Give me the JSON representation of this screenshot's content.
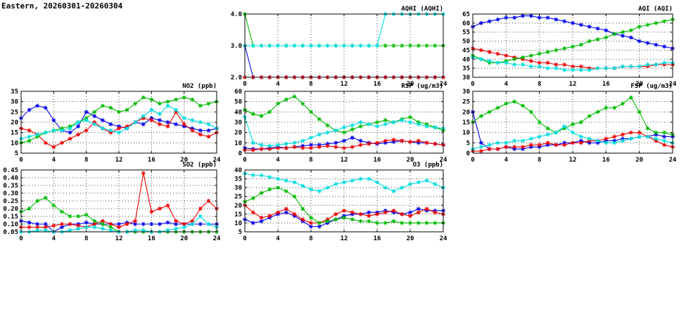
{
  "page": {
    "title": "Eastern, 20260301-20260304"
  },
  "colors": {
    "blue": "#0000ee",
    "red": "#ee0000",
    "green": "#00bb00",
    "cyan": "#00dddd"
  },
  "chart_data": [
    {
      "id": "aqhi",
      "type": "line",
      "title": "AQHI (AQHI)",
      "xlim": [
        0,
        24
      ],
      "xticks": [
        0,
        4,
        8,
        12,
        16,
        20,
        24
      ],
      "ylim": [
        2.0,
        4.0
      ],
      "yticks": [
        2.0,
        3.0,
        4.0
      ],
      "ytick_labels": [
        "2.0",
        "3.0",
        "4.0"
      ],
      "x": [
        0,
        1,
        2,
        3,
        4,
        5,
        6,
        7,
        8,
        9,
        10,
        11,
        12,
        13,
        14,
        15,
        16,
        17,
        18,
        19,
        20,
        21,
        22,
        23,
        24
      ],
      "series": [
        {
          "name": "blue",
          "values": [
            3,
            2,
            2,
            2,
            2,
            2,
            2,
            2,
            2,
            2,
            2,
            2,
            2,
            2,
            2,
            2,
            2,
            2,
            2,
            2,
            2,
            2,
            2,
            2,
            2
          ]
        },
        {
          "name": "red",
          "values": [
            2,
            2,
            2,
            2,
            2,
            2,
            2,
            2,
            2,
            2,
            2,
            2,
            2,
            2,
            2,
            2,
            2,
            2,
            2,
            2,
            2,
            2,
            2,
            2,
            2
          ]
        },
        {
          "name": "green",
          "values": [
            4,
            3,
            3,
            3,
            3,
            3,
            3,
            3,
            3,
            3,
            3,
            3,
            3,
            3,
            3,
            3,
            3,
            3,
            3,
            3,
            3,
            3,
            3,
            3,
            3
          ]
        },
        {
          "name": "cyan",
          "values": [
            3,
            3,
            3,
            3,
            3,
            3,
            3,
            3,
            3,
            3,
            3,
            3,
            3,
            3,
            3,
            3,
            3,
            4,
            4,
            4,
            4,
            4,
            4,
            4,
            4
          ]
        }
      ]
    },
    {
      "id": "aqi",
      "type": "line",
      "title": "AQI (AQI)",
      "xlim": [
        0,
        24
      ],
      "xticks": [
        0,
        4,
        8,
        12,
        16,
        20,
        24
      ],
      "ylim": [
        30,
        65
      ],
      "yticks": [
        30,
        35,
        40,
        45,
        50,
        55,
        60,
        65
      ],
      "ytick_labels": [
        "30",
        "35",
        "40",
        "45",
        "50",
        "55",
        "60",
        "65"
      ],
      "x": [
        0,
        1,
        2,
        3,
        4,
        5,
        6,
        7,
        8,
        9,
        10,
        11,
        12,
        13,
        14,
        15,
        16,
        17,
        18,
        19,
        20,
        21,
        22,
        23,
        24
      ],
      "series": [
        {
          "name": "blue",
          "values": [
            58,
            60,
            61,
            62,
            63,
            63,
            64,
            64,
            63,
            63,
            62,
            61,
            60,
            59,
            58,
            57,
            56,
            54,
            53,
            52,
            50,
            49,
            48,
            47,
            46
          ]
        },
        {
          "name": "red",
          "values": [
            46,
            45,
            44,
            43,
            42,
            41,
            40,
            39,
            38,
            38,
            37,
            37,
            36,
            36,
            35,
            35,
            35,
            35,
            36,
            36,
            36,
            36,
            37,
            37,
            37
          ]
        },
        {
          "name": "green",
          "values": [
            42,
            40,
            38,
            38,
            39,
            40,
            41,
            42,
            43,
            44,
            45,
            46,
            47,
            48,
            50,
            51,
            52,
            54,
            55,
            56,
            58,
            59,
            60,
            61,
            62
          ]
        },
        {
          "name": "cyan",
          "values": [
            41,
            40,
            39,
            38,
            38,
            37,
            37,
            36,
            36,
            35,
            35,
            34,
            34,
            34,
            34,
            35,
            35,
            35,
            36,
            36,
            36,
            37,
            37,
            38,
            38
          ]
        }
      ]
    },
    {
      "id": "no2",
      "type": "line",
      "title": "NO2 (ppb)",
      "xlim": [
        0,
        24
      ],
      "xticks": [
        0,
        4,
        8,
        12,
        16,
        20,
        24
      ],
      "ylim": [
        5,
        35
      ],
      "yticks": [
        5,
        10,
        15,
        20,
        25,
        30,
        35
      ],
      "ytick_labels": [
        "5",
        "10",
        "15",
        "20",
        "25",
        "30",
        "35"
      ],
      "x": [
        0,
        1,
        2,
        3,
        4,
        5,
        6,
        7,
        8,
        9,
        10,
        11,
        12,
        13,
        14,
        15,
        16,
        17,
        18,
        19,
        20,
        21,
        22,
        23,
        24
      ],
      "series": [
        {
          "name": "blue",
          "values": [
            22,
            26,
            28,
            27,
            21,
            16,
            15,
            18,
            25,
            23,
            21,
            19,
            18,
            17,
            20,
            19,
            22,
            21,
            20,
            19,
            18,
            17,
            16,
            16,
            17
          ]
        },
        {
          "name": "red",
          "values": [
            17,
            16,
            14,
            10,
            8,
            10,
            12,
            14,
            16,
            20,
            17,
            15,
            17,
            18,
            20,
            22,
            21,
            19,
            18,
            25,
            19,
            16,
            14,
            13,
            15
          ]
        },
        {
          "name": "green",
          "values": [
            10,
            11,
            13,
            15,
            16,
            17,
            18,
            20,
            22,
            25,
            28,
            27,
            25,
            26,
            29,
            32,
            31,
            29,
            30,
            31,
            32,
            31,
            28,
            29,
            30
          ]
        },
        {
          "name": "cyan",
          "values": [
            12,
            13,
            14,
            15,
            16,
            16,
            17,
            20,
            21,
            19,
            17,
            16,
            15,
            17,
            20,
            23,
            26,
            24,
            28,
            26,
            22,
            21,
            20,
            19,
            17
          ]
        }
      ]
    },
    {
      "id": "rsp",
      "type": "line",
      "title": "RSP (ug/m3)",
      "xlim": [
        0,
        24
      ],
      "xticks": [
        0,
        4,
        8,
        12,
        16,
        20,
        24
      ],
      "ylim": [
        0,
        60
      ],
      "yticks": [
        0,
        10,
        20,
        30,
        40,
        50,
        60
      ],
      "ytick_labels": [
        "0",
        "10",
        "20",
        "30",
        "40",
        "50",
        "60"
      ],
      "x": [
        0,
        1,
        2,
        3,
        4,
        5,
        6,
        7,
        8,
        9,
        10,
        11,
        12,
        13,
        14,
        15,
        16,
        17,
        18,
        19,
        20,
        21,
        22,
        23,
        24
      ],
      "series": [
        {
          "name": "blue",
          "values": [
            5,
            4,
            4,
            5,
            6,
            5,
            6,
            7,
            8,
            8,
            9,
            10,
            12,
            15,
            12,
            10,
            9,
            10,
            11,
            12,
            11,
            10,
            10,
            9,
            8
          ]
        },
        {
          "name": "red",
          "values": [
            3,
            3,
            4,
            4,
            5,
            5,
            6,
            5,
            5,
            6,
            7,
            6,
            5,
            6,
            8,
            9,
            10,
            12,
            13,
            12,
            11,
            12,
            10,
            9,
            8
          ]
        },
        {
          "name": "green",
          "values": [
            42,
            38,
            36,
            40,
            48,
            52,
            55,
            48,
            40,
            33,
            27,
            22,
            20,
            23,
            26,
            28,
            30,
            32,
            30,
            33,
            35,
            30,
            28,
            25,
            22
          ]
        },
        {
          "name": "cyan",
          "values": [
            35,
            10,
            8,
            7,
            8,
            9,
            10,
            12,
            15,
            18,
            20,
            22,
            25,
            27,
            30,
            28,
            26,
            28,
            30,
            32,
            30,
            28,
            26,
            25,
            24
          ]
        }
      ]
    },
    {
      "id": "fsp",
      "type": "line",
      "title": "FSP (ug/m3)",
      "xlim": [
        0,
        24
      ],
      "xticks": [
        0,
        4,
        8,
        12,
        16,
        20,
        24
      ],
      "ylim": [
        0,
        30
      ],
      "yticks": [
        0,
        5,
        10,
        15,
        20,
        25,
        30
      ],
      "ytick_labels": [
        "0",
        "5",
        "10",
        "15",
        "20",
        "25",
        "30"
      ],
      "x": [
        0,
        1,
        2,
        3,
        4,
        5,
        6,
        7,
        8,
        9,
        10,
        11,
        12,
        13,
        14,
        15,
        16,
        17,
        18,
        19,
        20,
        21,
        22,
        23,
        24
      ],
      "series": [
        {
          "name": "blue",
          "values": [
            20,
            5,
            2,
            2,
            3,
            2,
            2,
            3,
            3,
            4,
            4,
            5,
            5,
            6,
            5,
            5,
            6,
            6,
            7,
            7,
            8,
            8,
            9,
            8,
            8
          ]
        },
        {
          "name": "red",
          "values": [
            1,
            1,
            2,
            2,
            3,
            3,
            3,
            4,
            4,
            5,
            4,
            4,
            5,
            5,
            6,
            6,
            7,
            8,
            9,
            10,
            10,
            8,
            6,
            4,
            3
          ]
        },
        {
          "name": "green",
          "values": [
            15,
            18,
            20,
            22,
            24,
            25,
            23,
            20,
            15,
            12,
            10,
            12,
            14,
            15,
            18,
            20,
            22,
            22,
            24,
            27,
            20,
            12,
            10,
            10,
            9
          ]
        },
        {
          "name": "cyan",
          "values": [
            2,
            3,
            4,
            5,
            5,
            6,
            6,
            7,
            8,
            9,
            10,
            13,
            10,
            8,
            7,
            6,
            5,
            5,
            6,
            7,
            8,
            8,
            7,
            6,
            5
          ]
        }
      ]
    },
    {
      "id": "so2",
      "type": "line",
      "title": "SO2 (ppb)",
      "xlim": [
        0,
        24
      ],
      "xticks": [
        0,
        4,
        8,
        12,
        16,
        20,
        24
      ],
      "ylim": [
        0.05,
        0.45
      ],
      "yticks": [
        0.05,
        0.1,
        0.15,
        0.2,
        0.25,
        0.3,
        0.35,
        0.4,
        0.45
      ],
      "ytick_labels": [
        "0.05",
        "0.10",
        "0.15",
        "0.20",
        "0.25",
        "0.30",
        "0.35",
        "0.40",
        "0.45"
      ],
      "x": [
        0,
        1,
        2,
        3,
        4,
        5,
        6,
        7,
        8,
        9,
        10,
        11,
        12,
        13,
        14,
        15,
        16,
        17,
        18,
        19,
        20,
        21,
        22,
        23,
        24
      ],
      "series": [
        {
          "name": "blue",
          "values": [
            0.12,
            0.11,
            0.1,
            0.1,
            0.05,
            0.08,
            0.1,
            0.1,
            0.11,
            0.1,
            0.1,
            0.1,
            0.1,
            0.11,
            0.1,
            0.1,
            0.1,
            0.1,
            0.11,
            0.1,
            0.1,
            0.1,
            0.1,
            0.1,
            0.1
          ]
        },
        {
          "name": "red",
          "values": [
            0.08,
            0.08,
            0.08,
            0.08,
            0.09,
            0.1,
            0.1,
            0.09,
            0.08,
            0.1,
            0.12,
            0.1,
            0.08,
            0.1,
            0.12,
            0.43,
            0.18,
            0.2,
            0.22,
            0.12,
            0.1,
            0.12,
            0.2,
            0.25,
            0.2
          ]
        },
        {
          "name": "green",
          "values": [
            0.18,
            0.2,
            0.25,
            0.27,
            0.22,
            0.18,
            0.15,
            0.15,
            0.16,
            0.12,
            0.1,
            0.08,
            0.05,
            0.05,
            0.05,
            0.05,
            0.05,
            0.05,
            0.05,
            0.05,
            0.05,
            0.05,
            0.05,
            0.05,
            0.05
          ]
        },
        {
          "name": "cyan",
          "values": [
            0.05,
            0.05,
            0.06,
            0.06,
            0.05,
            0.05,
            0.06,
            0.07,
            0.08,
            0.08,
            0.07,
            0.06,
            0.05,
            0.05,
            0.06,
            0.06,
            0.05,
            0.05,
            0.06,
            0.07,
            0.08,
            0.1,
            0.15,
            0.1,
            0.08
          ]
        }
      ]
    },
    {
      "id": "o3",
      "type": "line",
      "title": "O3 (ppb)",
      "xlim": [
        0,
        24
      ],
      "xticks": [
        0,
        4,
        8,
        12,
        16,
        20,
        24
      ],
      "ylim": [
        5,
        40
      ],
      "yticks": [
        5,
        10,
        15,
        20,
        25,
        30,
        35,
        40
      ],
      "ytick_labels": [
        "5",
        "10",
        "15",
        "20",
        "25",
        "30",
        "35",
        "40"
      ],
      "x": [
        0,
        1,
        2,
        3,
        4,
        5,
        6,
        7,
        8,
        9,
        10,
        11,
        12,
        13,
        14,
        15,
        16,
        17,
        18,
        19,
        20,
        21,
        22,
        23,
        24
      ],
      "series": [
        {
          "name": "blue",
          "values": [
            12,
            10,
            11,
            13,
            15,
            16,
            14,
            11,
            8,
            8,
            10,
            12,
            14,
            15,
            15,
            16,
            16,
            17,
            16,
            15,
            16,
            18,
            17,
            17,
            17
          ]
        },
        {
          "name": "red",
          "values": [
            20,
            16,
            13,
            14,
            16,
            18,
            15,
            12,
            10,
            10,
            12,
            15,
            17,
            16,
            15,
            14,
            15,
            16,
            17,
            15,
            14,
            16,
            18,
            16,
            15
          ]
        },
        {
          "name": "green",
          "values": [
            22,
            24,
            27,
            29,
            30,
            28,
            25,
            18,
            13,
            10,
            11,
            12,
            13,
            12,
            11,
            11,
            10,
            10,
            11,
            10,
            10,
            10,
            10,
            10,
            10
          ]
        },
        {
          "name": "cyan",
          "values": [
            38,
            37,
            37,
            36,
            35,
            34,
            33,
            31,
            29,
            28,
            30,
            32,
            33,
            34,
            35,
            35,
            33,
            30,
            28,
            30,
            32,
            33,
            34,
            32,
            30
          ]
        }
      ]
    }
  ]
}
